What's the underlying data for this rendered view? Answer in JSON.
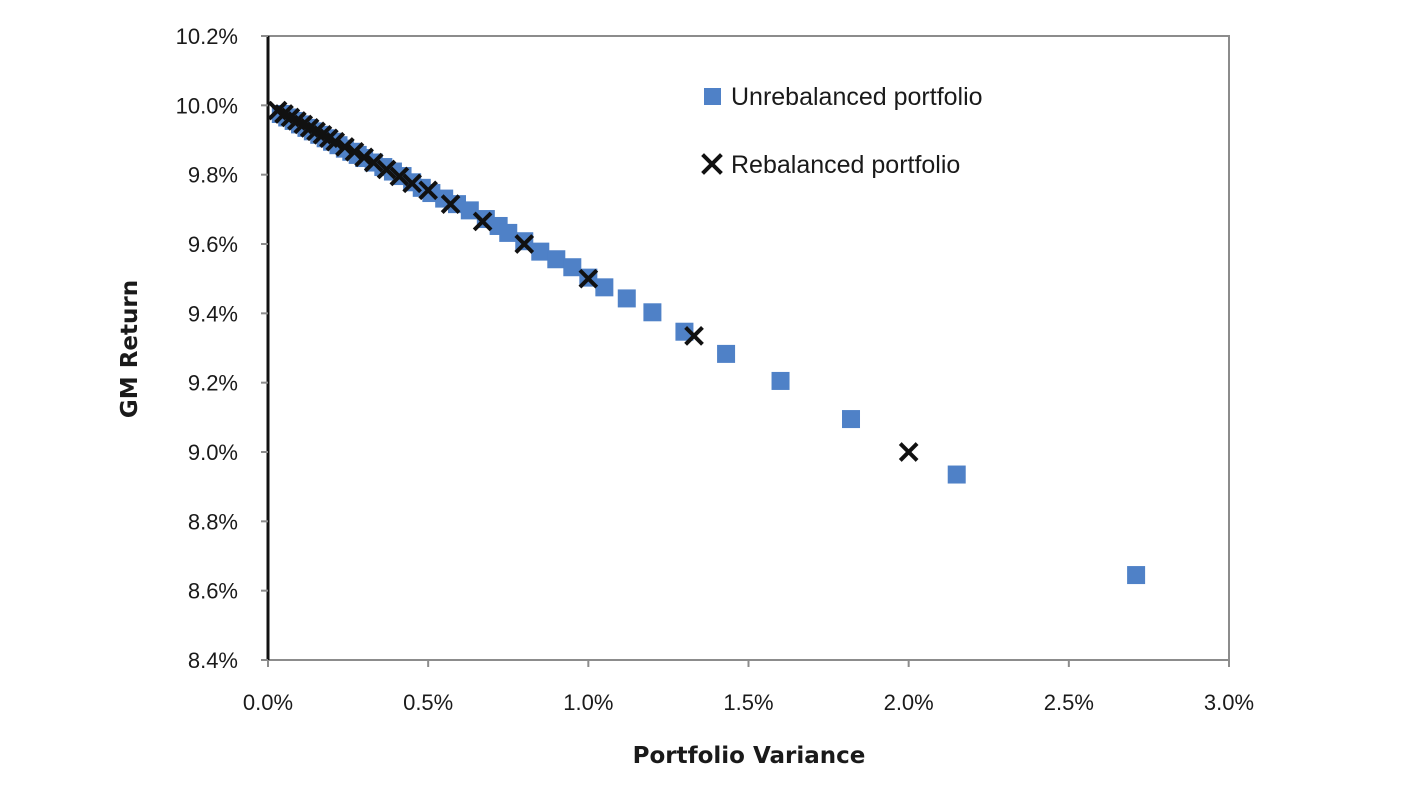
{
  "chart_data": {
    "type": "scatter",
    "title": "",
    "xlabel": "Portfolio Variance",
    "ylabel": "GM Return",
    "xlim": [
      0.0,
      3.0
    ],
    "ylim": [
      8.4,
      10.2
    ],
    "x_ticks": [
      "0.0%",
      "0.5%",
      "1.0%",
      "1.5%",
      "2.0%",
      "2.5%",
      "3.0%"
    ],
    "y_ticks": [
      "8.4%",
      "8.6%",
      "8.8%",
      "9.0%",
      "9.2%",
      "9.4%",
      "9.6%",
      "9.8%",
      "10.0%",
      "10.2%"
    ],
    "x_unit": "%",
    "y_unit": "%",
    "grid": false,
    "legend_position": "top-right",
    "series": [
      {
        "name": "Unrebalanced portfolio",
        "marker": "square",
        "color": "#4f81c7",
        "points": [
          [
            0.04,
            9.975
          ],
          [
            0.06,
            9.965
          ],
          [
            0.08,
            9.955
          ],
          [
            0.1,
            9.945
          ],
          [
            0.12,
            9.935
          ],
          [
            0.14,
            9.925
          ],
          [
            0.16,
            9.915
          ],
          [
            0.18,
            9.905
          ],
          [
            0.2,
            9.895
          ],
          [
            0.22,
            9.885
          ],
          [
            0.24,
            9.875
          ],
          [
            0.26,
            9.866
          ],
          [
            0.28,
            9.857
          ],
          [
            0.3,
            9.848
          ],
          [
            0.33,
            9.835
          ],
          [
            0.36,
            9.822
          ],
          [
            0.39,
            9.809
          ],
          [
            0.42,
            9.796
          ],
          [
            0.45,
            9.778
          ],
          [
            0.48,
            9.762
          ],
          [
            0.51,
            9.747
          ],
          [
            0.55,
            9.731
          ],
          [
            0.59,
            9.715
          ],
          [
            0.63,
            9.697
          ],
          [
            0.68,
            9.672
          ],
          [
            0.72,
            9.652
          ],
          [
            0.75,
            9.632
          ],
          [
            0.8,
            9.608
          ],
          [
            0.85,
            9.578
          ],
          [
            0.9,
            9.556
          ],
          [
            0.95,
            9.533
          ],
          [
            1.0,
            9.503
          ],
          [
            1.05,
            9.475
          ],
          [
            1.12,
            9.443
          ],
          [
            1.2,
            9.403
          ],
          [
            1.3,
            9.347
          ],
          [
            1.43,
            9.283
          ],
          [
            1.6,
            9.205
          ],
          [
            1.82,
            9.095
          ],
          [
            2.15,
            8.935
          ],
          [
            2.71,
            8.645
          ]
        ]
      },
      {
        "name": "Rebalanced portfolio",
        "marker": "x",
        "color": "#111111",
        "points": [
          [
            0.03,
            9.985
          ],
          [
            0.05,
            9.975
          ],
          [
            0.07,
            9.965
          ],
          [
            0.09,
            9.955
          ],
          [
            0.11,
            9.945
          ],
          [
            0.13,
            9.935
          ],
          [
            0.15,
            9.925
          ],
          [
            0.17,
            9.915
          ],
          [
            0.19,
            9.905
          ],
          [
            0.21,
            9.895
          ],
          [
            0.24,
            9.88
          ],
          [
            0.27,
            9.866
          ],
          [
            0.3,
            9.85
          ],
          [
            0.33,
            9.835
          ],
          [
            0.37,
            9.815
          ],
          [
            0.41,
            9.795
          ],
          [
            0.45,
            9.775
          ],
          [
            0.5,
            9.755
          ],
          [
            0.57,
            9.715
          ],
          [
            0.67,
            9.665
          ],
          [
            0.8,
            9.6
          ],
          [
            1.0,
            9.5
          ],
          [
            1.33,
            9.335
          ],
          [
            2.0,
            9.0
          ]
        ]
      }
    ]
  }
}
